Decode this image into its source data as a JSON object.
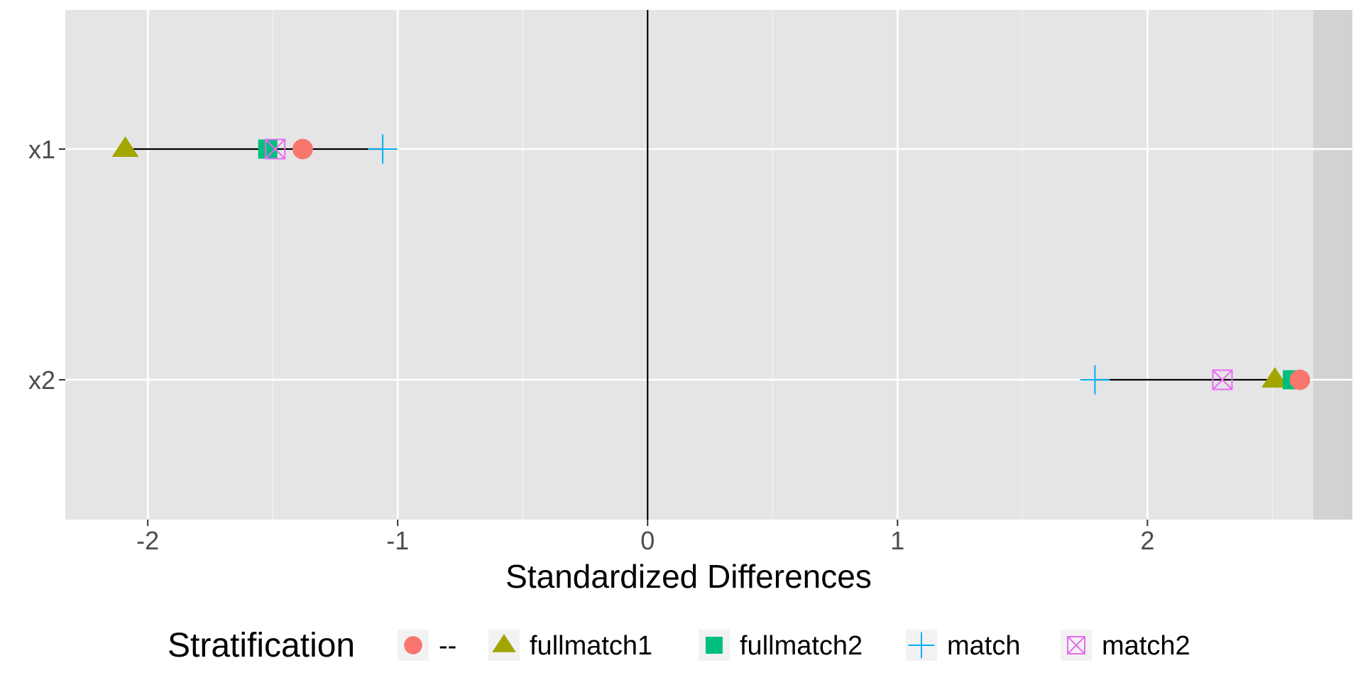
{
  "chart_data": {
    "type": "scatter",
    "title": "",
    "xlabel": "Standardized Differences",
    "ylabel": "",
    "xlim": [
      -2.33,
      2.82
    ],
    "x_ticks": [
      -2,
      -1,
      0,
      1,
      2
    ],
    "x_tick_labels": [
      "-2",
      "-1",
      "0",
      "1",
      "2"
    ],
    "categories": [
      "x1",
      "x2"
    ],
    "grid": true,
    "reference_line": 0,
    "legend": {
      "title": "Stratification",
      "placement": "bottom"
    },
    "series": [
      {
        "name": "--",
        "shape": "circle",
        "color": "#F8766D",
        "values": [
          -1.38,
          2.61
        ]
      },
      {
        "name": "fullmatch1",
        "shape": "triangle",
        "color": "#A3A500",
        "values": [
          -2.09,
          2.51
        ]
      },
      {
        "name": "fullmatch2",
        "shape": "square",
        "color": "#00BF7D",
        "values": [
          -1.52,
          2.58
        ]
      },
      {
        "name": "match",
        "shape": "plus",
        "color": "#00B0F6",
        "values": [
          -1.06,
          1.79
        ]
      },
      {
        "name": "match2",
        "shape": "square-x",
        "color": "#E76BF3",
        "values": [
          -1.49,
          2.3
        ]
      }
    ]
  }
}
